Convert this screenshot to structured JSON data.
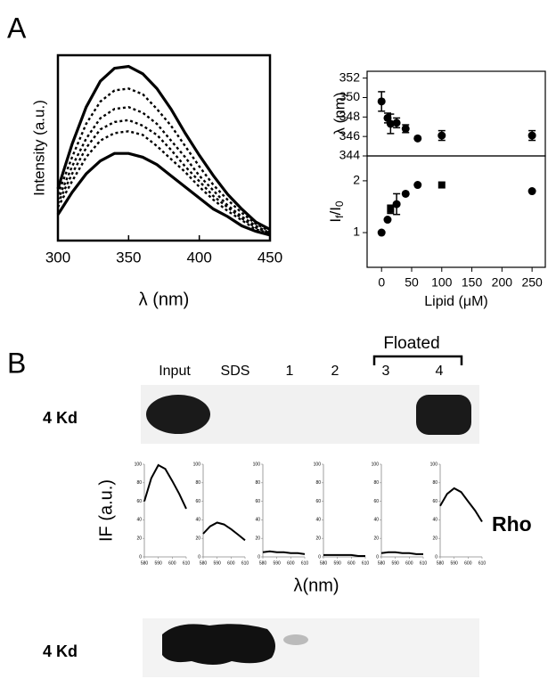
{
  "panels": [
    "A",
    "B"
  ],
  "chart_data": [
    {
      "type": "line",
      "xlabel": "λ (nm)",
      "ylabel": "Intensity (a.u.)",
      "xlim": [
        300,
        450
      ],
      "xticks": [
        300,
        350,
        400,
        450
      ],
      "ylim": [
        0,
        100
      ],
      "x": [
        300,
        310,
        320,
        330,
        340,
        350,
        360,
        370,
        380,
        390,
        400,
        410,
        420,
        430,
        440,
        450
      ],
      "series": [
        {
          "color": "#000000",
          "style": "solid",
          "values": [
            28,
            52,
            72,
            86,
            93,
            94,
            90,
            82,
            71,
            58,
            46,
            35,
            25,
            17,
            10,
            6
          ]
        },
        {
          "color": "#000000",
          "style": "dotted",
          "values": [
            25,
            45,
            63,
            75,
            81,
            82,
            79,
            71,
            62,
            51,
            40,
            30,
            22,
            15,
            9,
            5
          ]
        },
        {
          "color": "#000000",
          "style": "dotted",
          "values": [
            22,
            40,
            55,
            66,
            71,
            72,
            69,
            63,
            54,
            45,
            35,
            27,
            19,
            13,
            8,
            4
          ]
        },
        {
          "color": "#000000",
          "style": "dotted",
          "values": [
            20,
            36,
            50,
            60,
            64,
            65,
            62,
            57,
            49,
            40,
            32,
            24,
            18,
            12,
            7,
            4
          ]
        },
        {
          "color": "#000000",
          "style": "dotted",
          "values": [
            18,
            32,
            45,
            54,
            58,
            59,
            57,
            51,
            44,
            37,
            29,
            22,
            16,
            11,
            6,
            4
          ]
        },
        {
          "color": "#000000",
          "style": "solid",
          "values": [
            14,
            26,
            36,
            43,
            47,
            47,
            45,
            41,
            35,
            29,
            23,
            17,
            13,
            8,
            5,
            3
          ]
        }
      ]
    },
    {
      "type": "scatter",
      "ylabel": "λ (nm)",
      "xlim": [
        -24,
        272
      ],
      "ylim": [
        344,
        352.7
      ],
      "yticks": [
        344,
        346,
        348,
        350,
        352
      ],
      "color": "#000000",
      "x": [
        0,
        10,
        15,
        25,
        40,
        60,
        100,
        250
      ],
      "values": [
        349.6,
        347.9,
        347.3,
        347.4,
        346.8,
        345.8,
        346.1,
        346.1
      ],
      "errors": [
        1.0,
        0.5,
        1.0,
        0.5,
        0.4,
        null,
        0.5,
        0.5
      ],
      "markers": [
        "circle",
        "circle",
        "circle",
        "circle",
        "circle",
        "circle",
        "circle",
        "circle"
      ]
    },
    {
      "type": "scatter",
      "ylabel": [
        "I",
        "f",
        "/I",
        "0"
      ],
      "xlabel": "Lipid (μM)",
      "xlim": [
        -24,
        272
      ],
      "xticks": [
        0,
        50,
        100,
        150,
        200,
        250
      ],
      "ylim": [
        0.33,
        2.48
      ],
      "yticks": [
        1,
        2
      ],
      "color": "#000000",
      "x": [
        0,
        10,
        15,
        25,
        40,
        60,
        100,
        250
      ],
      "values": [
        1.0,
        1.25,
        1.45,
        1.55,
        1.75,
        1.92,
        1.92,
        1.8
      ],
      "errors": [
        null,
        null,
        0.08,
        0.2,
        null,
        null,
        null,
        null
      ],
      "markers": [
        "circle",
        "circle",
        "square",
        "circle",
        "circle",
        "circle",
        "square",
        "circle"
      ]
    },
    {
      "type": "line-panels",
      "ylabel": "IF (a.u.)",
      "xlabel": "λ(nm)",
      "xlim": [
        580,
        610
      ],
      "xticks": [
        580,
        590,
        600,
        610
      ],
      "ylim": [
        0,
        100
      ],
      "yticks": [
        0,
        20,
        40,
        60,
        80,
        100
      ],
      "x": [
        580,
        585,
        590,
        595,
        600,
        605,
        610
      ],
      "series": [
        {
          "color": "#000000",
          "values": [
            60,
            85,
            99,
            95,
            82,
            68,
            52
          ]
        },
        {
          "color": "#000000",
          "values": [
            25,
            33,
            37,
            35,
            30,
            24,
            18
          ]
        },
        {
          "color": "#000000",
          "values": [
            5,
            6,
            5,
            5,
            4,
            4,
            3
          ]
        },
        {
          "color": "#000000",
          "values": [
            2,
            2,
            2,
            2,
            2,
            1,
            1
          ]
        },
        {
          "color": "#000000",
          "values": [
            4,
            5,
            5,
            4,
            4,
            3,
            3
          ]
        },
        {
          "color": "#000000",
          "values": [
            55,
            68,
            74,
            70,
            60,
            50,
            38
          ]
        }
      ]
    }
  ],
  "gel": {
    "lanes": [
      "Input",
      "SDS",
      "1",
      "2",
      "3",
      "4"
    ],
    "group_label": "Floated",
    "row_labels": [
      "4 Kd",
      "4 Kd"
    ],
    "side_label": "Rho"
  }
}
